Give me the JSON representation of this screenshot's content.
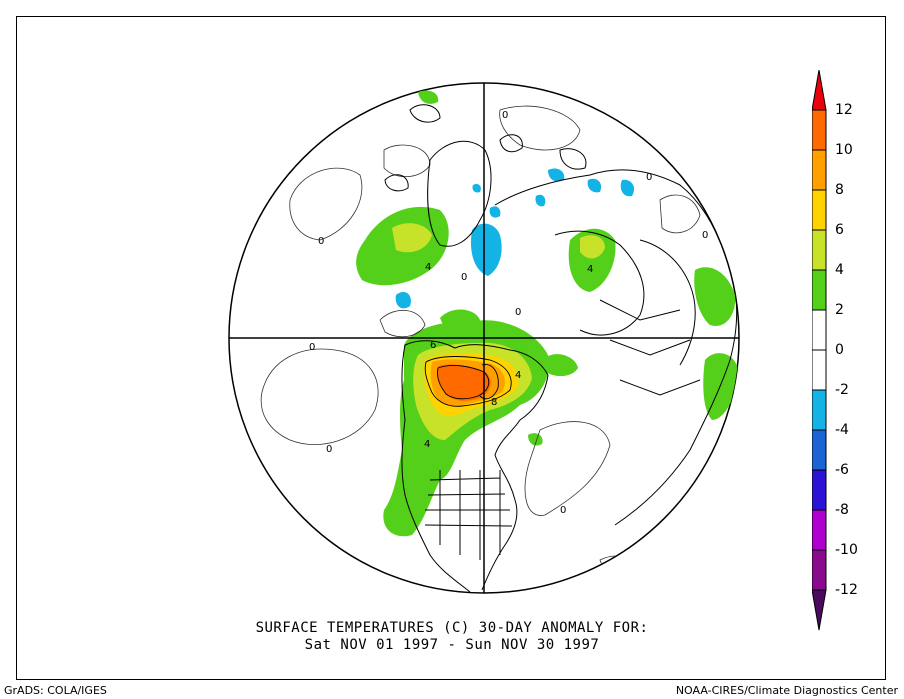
{
  "title": {
    "line1": "SURFACE TEMPERATURES (C)   30-DAY ANOMALY FOR:",
    "line2": "Sat NOV 01 1997 - Sun NOV 30 1997"
  },
  "footer": {
    "left": "GrADS: COLA/IGES",
    "right": "NOAA-CIRES/Climate Diagnostics Center"
  },
  "colorbar": {
    "labels": [
      "12",
      "10",
      "8",
      "6",
      "4",
      "2",
      "0",
      "-2",
      "-4",
      "-6",
      "-8",
      "-10",
      "-12"
    ],
    "colors": [
      "#e8000b",
      "#ff6a00",
      "#ff9f00",
      "#ffd300",
      "#c8e22a",
      "#55d01a",
      "#ffffff",
      "#ffffff",
      "#14b3e6",
      "#1c63d6",
      "#2a13d4",
      "#b000d0",
      "#8a0a8e",
      "#4a0a5e"
    ]
  },
  "map": {
    "projection": "north-polar-stereographic",
    "contour_labels": [
      "0",
      "0",
      "0",
      "0",
      "0",
      "0",
      "0",
      "0",
      "0",
      "4",
      "4",
      "4",
      "6",
      "8",
      "4"
    ]
  }
}
